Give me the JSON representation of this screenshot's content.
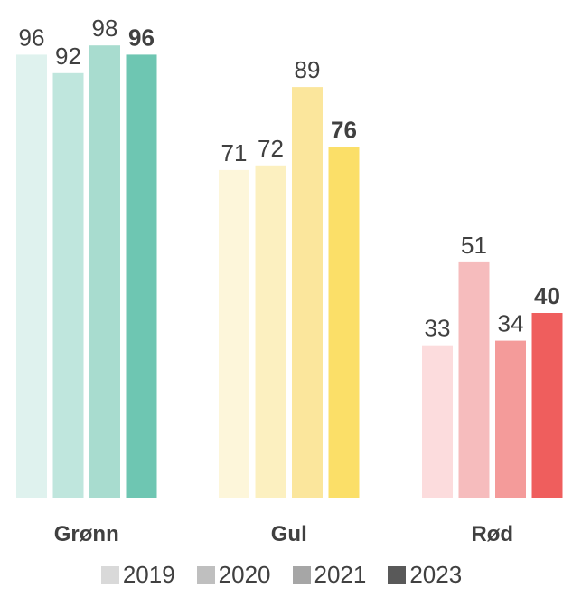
{
  "chart_data": {
    "type": "bar",
    "categories": [
      "Grønn",
      "Gul",
      "Rød"
    ],
    "series": [
      {
        "name": "2019",
        "values": [
          96,
          71,
          33
        ]
      },
      {
        "name": "2020",
        "values": [
          92,
          72,
          51
        ]
      },
      {
        "name": "2021",
        "values": [
          98,
          89,
          34
        ]
      },
      {
        "name": "2023",
        "values": [
          96,
          76,
          40
        ]
      }
    ],
    "highlight_series": "2023",
    "ylim": [
      0,
      100
    ],
    "grid": false,
    "legend_position": "bottom",
    "bar_colors": [
      [
        "#dff2ee",
        "#bfe6dd",
        "#a8dccf",
        "#6ec6b2"
      ],
      [
        "#fdf6da",
        "#fcf0c0",
        "#fbe69c",
        "#fbdf68"
      ],
      [
        "#fcdcdd",
        "#f6bcbd",
        "#f49b9a",
        "#ef5e5d"
      ]
    ],
    "legend_colors": [
      "#d9d9d9",
      "#bfbfbf",
      "#a6a6a6",
      "#595959"
    ]
  }
}
